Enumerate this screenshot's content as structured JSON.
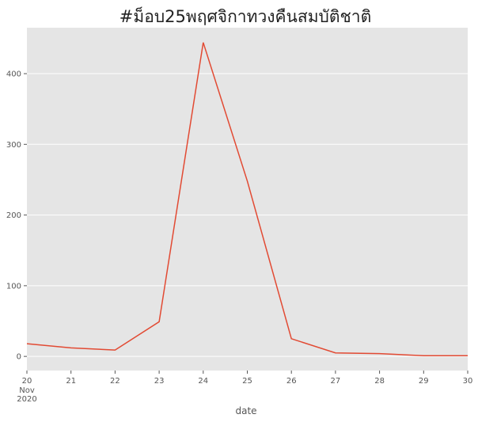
{
  "chart_data": {
    "type": "line",
    "title": "#ม็อบ25พฤศจิกาทวงคืนสมบัติชาติ",
    "xlabel": "date",
    "ylabel": "",
    "x": [
      "20",
      "21",
      "22",
      "23",
      "24",
      "25",
      "26",
      "27",
      "28",
      "29",
      "30"
    ],
    "x_sub_month": "Nov",
    "x_sub_year": "2020",
    "series": [
      {
        "values": [
          18,
          12,
          9,
          49,
          444,
          248,
          25,
          5,
          4,
          1,
          1
        ]
      }
    ],
    "ylim": [
      -20,
      465
    ],
    "yticks": [
      "0",
      "100",
      "200",
      "300",
      "400"
    ],
    "ytick_values": [
      0,
      100,
      200,
      300,
      400
    ],
    "grid": true,
    "colors": {
      "line": "#E24A33",
      "plot_bg": "#E5E5E5",
      "grid": "#FFFFFF"
    }
  }
}
